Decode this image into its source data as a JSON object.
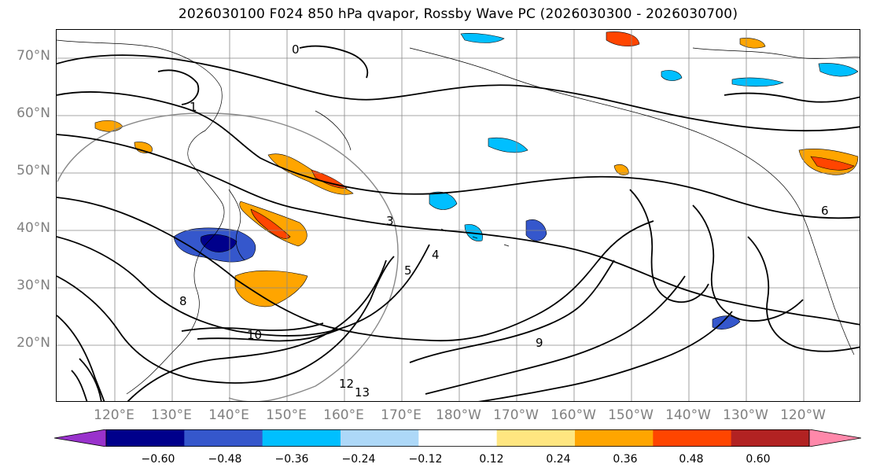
{
  "title": "2026030100 F024 850 hPa qvapor, Rossby Wave PC (2026030300 - 2026030700)",
  "lat_labels": [
    "70°N",
    "60°N",
    "50°N",
    "40°N",
    "30°N",
    "20°N"
  ],
  "lon_labels": [
    "120°E",
    "130°E",
    "140°E",
    "150°E",
    "160°E",
    "170°E",
    "180°W",
    "170°W",
    "160°W",
    "150°W",
    "140°W",
    "130°W",
    "120°W"
  ],
  "contour_labels": [
    "0",
    "1",
    "3",
    "4",
    "5",
    "6",
    "8",
    "9",
    "10",
    "12",
    "13"
  ],
  "colorbar": {
    "levels": [
      "−0.60",
      "−0.48",
      "−0.36",
      "−0.24",
      "−0.12",
      "0.12",
      "0.24",
      "0.36",
      "0.48",
      "0.60"
    ],
    "colors": [
      "#9932cc",
      "#00008b",
      "#3557cc",
      "#00bfff",
      "#add8f8",
      "#ffffff",
      "#ffe680",
      "#ffa500",
      "#ff4500",
      "#b22222",
      "#ff88aa"
    ]
  },
  "colors": {
    "land_outline": "#000000",
    "grid": "#888888",
    "contour": "#000000",
    "label": "#808080"
  }
}
